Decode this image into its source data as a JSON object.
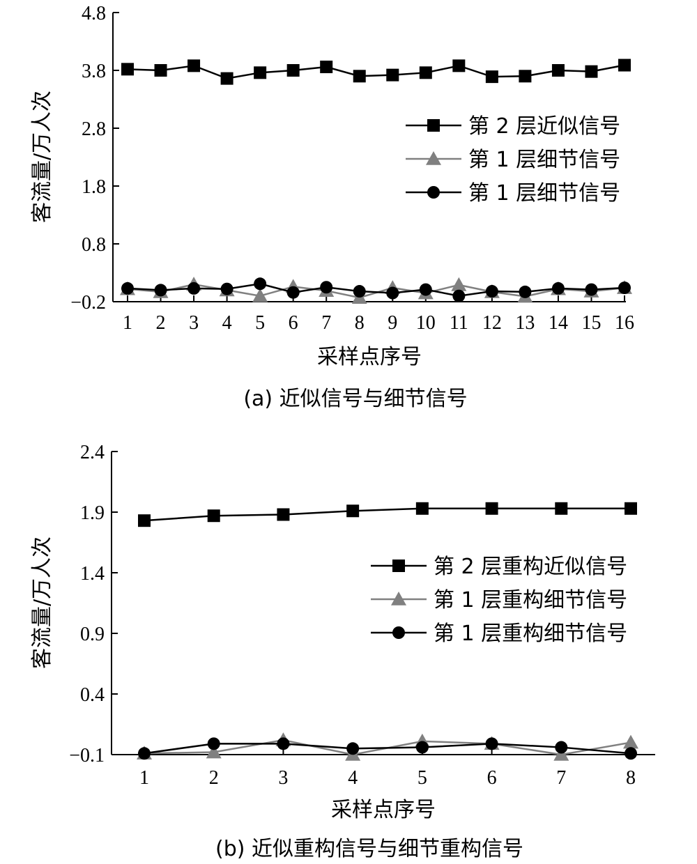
{
  "chart_data": [
    {
      "type": "line",
      "caption": "(a) 近似信号与细节信号",
      "xlabel": "采样点序号",
      "ylabel": "客流量/万人次",
      "ylim": [
        -0.2,
        4.8
      ],
      "yticks": [
        "−0.2",
        "0.8",
        "1.8",
        "2.8",
        "3.8",
        "4.8"
      ],
      "ytick_values": [
        -0.2,
        0.8,
        1.8,
        2.8,
        3.8,
        4.8
      ],
      "categories": [
        "1",
        "2",
        "3",
        "4",
        "5",
        "6",
        "7",
        "8",
        "9",
        "10",
        "11",
        "12",
        "13",
        "14",
        "15",
        "16"
      ],
      "legend_position": "right",
      "series": [
        {
          "name": "第 2 层近似信号",
          "marker": "square",
          "color": "#000000",
          "values": [
            3.82,
            3.8,
            3.88,
            3.66,
            3.76,
            3.8,
            3.86,
            3.7,
            3.72,
            3.76,
            3.88,
            3.69,
            3.7,
            3.8,
            3.78,
            3.89
          ]
        },
        {
          "name": "第 1 层细节信号",
          "marker": "triangle",
          "color": "#808080",
          "values": [
            0.02,
            -0.03,
            0.1,
            0.0,
            -0.1,
            0.06,
            -0.01,
            -0.13,
            0.04,
            -0.05,
            0.09,
            -0.03,
            -0.11,
            0.02,
            -0.02,
            0.04
          ]
        },
        {
          "name": "第 1 层细节信号",
          "marker": "circle",
          "color": "#000000",
          "values": [
            0.03,
            0.0,
            0.03,
            0.02,
            0.11,
            -0.04,
            0.05,
            -0.02,
            -0.05,
            0.01,
            -0.1,
            -0.02,
            -0.03,
            0.03,
            0.01,
            0.04
          ]
        }
      ]
    },
    {
      "type": "line",
      "caption": "(b) 近似重构信号与细节重构信号",
      "xlabel": "采样点序号",
      "ylabel": "客流量/万人次",
      "ylim": [
        -0.1,
        2.4
      ],
      "yticks": [
        "−0.1",
        "0.4",
        "0.9",
        "1.4",
        "1.9",
        "2.4"
      ],
      "ytick_values": [
        -0.1,
        0.4,
        0.9,
        1.4,
        1.9,
        2.4
      ],
      "categories": [
        "1",
        "2",
        "3",
        "4",
        "5",
        "6",
        "7",
        "8"
      ],
      "legend_position": "right",
      "series": [
        {
          "name": "第 2 层重构近似信号",
          "marker": "square",
          "color": "#000000",
          "values": [
            1.83,
            1.87,
            1.88,
            1.91,
            1.93,
            1.93,
            1.93,
            1.93
          ]
        },
        {
          "name": "第 1 层重构细节信号",
          "marker": "triangle",
          "color": "#808080",
          "values": [
            -0.09,
            -0.08,
            0.02,
            -0.1,
            0.01,
            -0.01,
            -0.1,
            0.0
          ]
        },
        {
          "name": "第 1 层重构细节信号",
          "marker": "circle",
          "color": "#000000",
          "values": [
            -0.09,
            -0.01,
            -0.01,
            -0.05,
            -0.04,
            -0.01,
            -0.04,
            -0.09
          ]
        }
      ]
    }
  ]
}
